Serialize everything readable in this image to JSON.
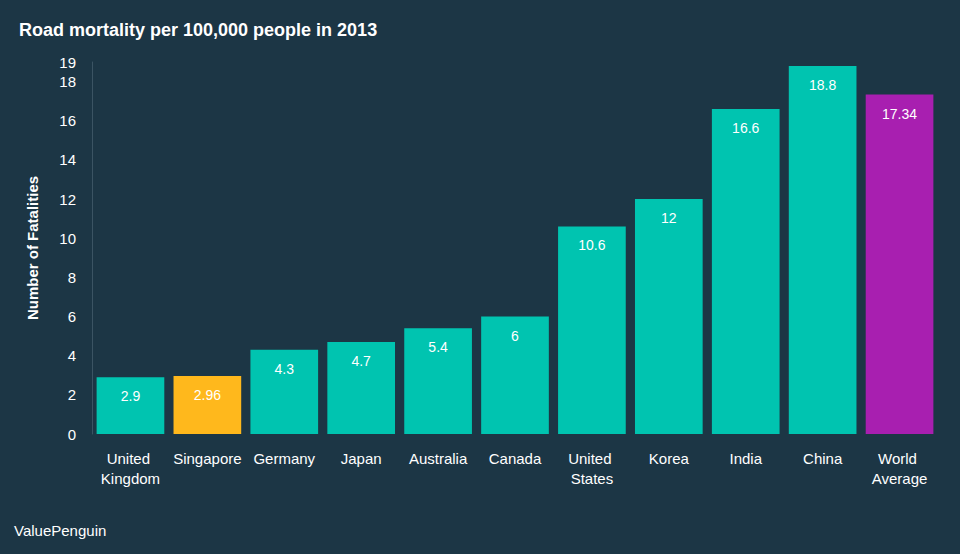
{
  "chart_data": {
    "type": "bar",
    "title": "Road mortality per 100,000 people in 2013",
    "y_label": "Number of Fatalities",
    "source": "ValuePenguin",
    "categories": [
      "United Kingdom",
      "Singapore",
      "Germany",
      "Japan",
      "Australia",
      "Canada",
      "United States",
      "Korea",
      "India",
      "China",
      "World Average"
    ],
    "values": [
      2.9,
      2.96,
      4.3,
      4.7,
      5.4,
      6,
      10.6,
      12,
      16.6,
      18.8,
      17.34
    ],
    "colors": [
      "#00c4b0",
      "#ffb81c",
      "#00c4b0",
      "#00c4b0",
      "#00c4b0",
      "#00c4b0",
      "#00c4b0",
      "#00c4b0",
      "#00c4b0",
      "#00c4b0",
      "#a81fb0"
    ],
    "ylim": [
      0,
      19
    ],
    "yticks": [
      0,
      2,
      4,
      6,
      8,
      10,
      12,
      14,
      16,
      18
    ],
    "grid": false,
    "data_labels": true
  }
}
